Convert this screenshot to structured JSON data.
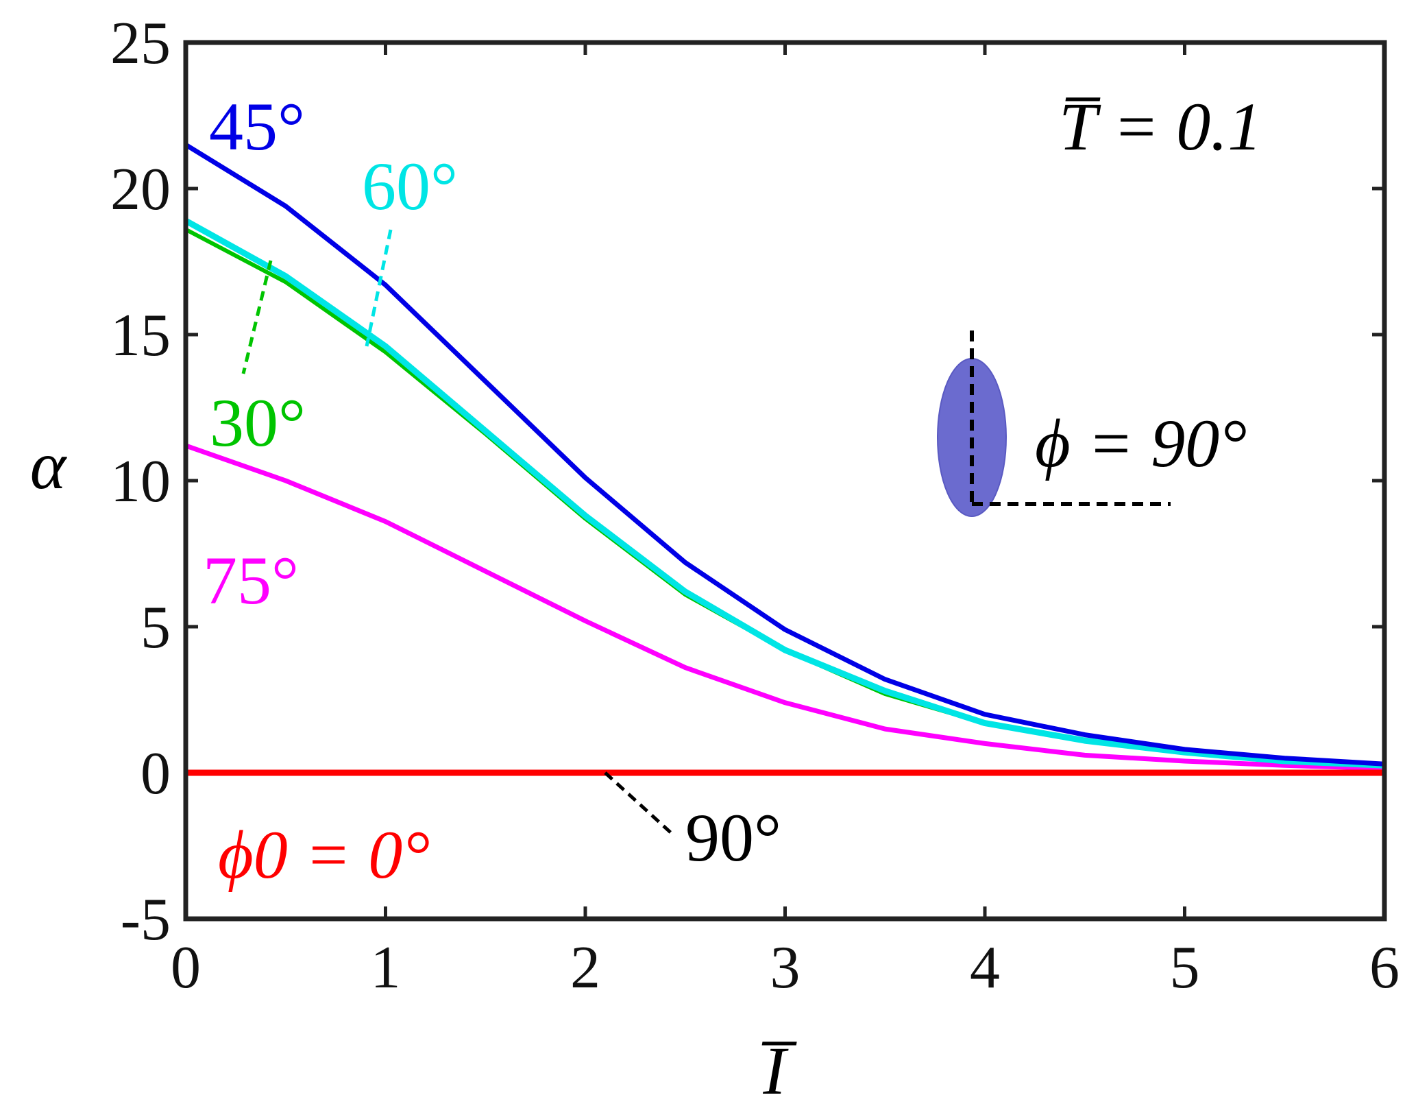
{
  "chart_data": {
    "type": "line",
    "title": "",
    "xlabel": "I̅",
    "ylabel": "α",
    "xlim": [
      0,
      6
    ],
    "ylim": [
      -5,
      25
    ],
    "xticks": [
      0,
      1,
      2,
      3,
      4,
      5,
      6
    ],
    "yticks": [
      -5,
      0,
      5,
      10,
      15,
      20,
      25
    ],
    "xtick_labels": [
      "0",
      "1",
      "2",
      "3",
      "4",
      "5",
      "6"
    ],
    "ytick_labels": [
      "-5",
      "0",
      "5",
      "10",
      "15",
      "20",
      "25"
    ],
    "grid": false,
    "x": [
      0,
      0.5,
      1,
      1.5,
      2,
      2.5,
      3,
      3.5,
      4,
      4.5,
      5,
      5.5,
      6
    ],
    "series": [
      {
        "name": "45°",
        "color": "#0000e6",
        "values": [
          21.5,
          19.4,
          16.7,
          13.4,
          10.1,
          7.2,
          4.9,
          3.2,
          2.0,
          1.3,
          0.8,
          0.5,
          0.3
        ]
      },
      {
        "name": "60°",
        "color": "#00e5e5",
        "values": [
          18.9,
          17.0,
          14.6,
          11.7,
          8.8,
          6.2,
          4.2,
          2.8,
          1.7,
          1.1,
          0.7,
          0.4,
          0.25
        ]
      },
      {
        "name": "30°",
        "color": "#00c400",
        "values": [
          18.6,
          16.8,
          14.4,
          11.6,
          8.7,
          6.1,
          4.2,
          2.7,
          1.7,
          1.1,
          0.7,
          0.4,
          0.25
        ]
      },
      {
        "name": "75°",
        "color": "#ff00ff",
        "values": [
          11.2,
          10.0,
          8.6,
          6.9,
          5.2,
          3.6,
          2.4,
          1.5,
          1.0,
          0.6,
          0.4,
          0.25,
          0.15
        ]
      },
      {
        "name": "ϕ0 = 0°",
        "color": "#ff0000",
        "values": [
          0,
          0,
          0,
          0,
          0,
          0,
          0,
          0,
          0,
          0,
          0,
          0,
          0
        ]
      }
    ],
    "annotations": {
      "t_bar": "T̅ = 0.1",
      "phi_label": "ϕ = 90°",
      "label_45": "45°",
      "label_60": "60°",
      "label_30": "30°",
      "label_75": "75°",
      "label_0": "ϕ0 = 0°",
      "label_90": "90°"
    },
    "inset": {
      "ellipse_color": "#6b6bcf",
      "description_angle": 90
    }
  }
}
